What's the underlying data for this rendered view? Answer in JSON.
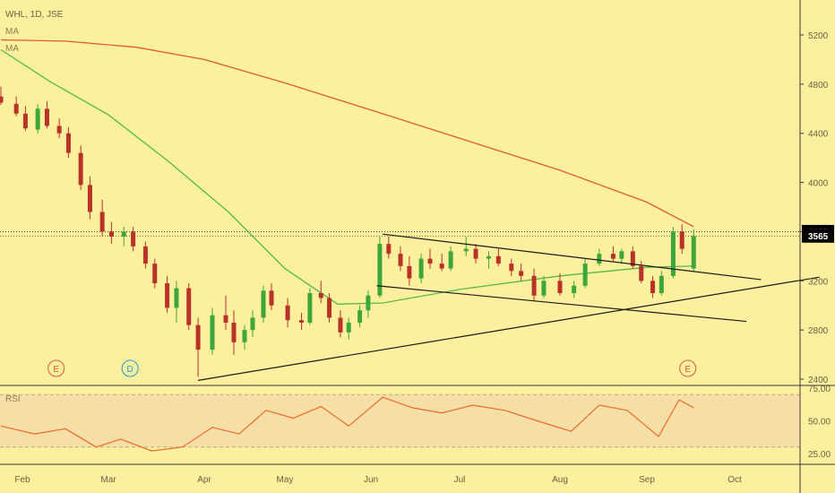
{
  "header": {
    "symbol_line": "WHL, 1D, JSE",
    "ma1_label": "MA",
    "ma2_label": "MA"
  },
  "rsi_panel": {
    "label": "RSI"
  },
  "colors": {
    "background": "#fcef9e",
    "up_candle": "#3da63a",
    "down_candle": "#b83227",
    "ma_long": "#e2583a",
    "ma_short": "#55b94a",
    "rsi_line": "#ef6a2a",
    "rsi_band": "#f5dfa6",
    "price_tag": "#000000",
    "trendline": "#1b1b1b"
  },
  "chart_data": [
    {
      "type": "candlestick",
      "title": "WHL, 1D, JSE",
      "xlabel": "",
      "ylabel": "",
      "x_ticks": [
        "Feb",
        "Mar",
        "Apr",
        "May",
        "Jun",
        "Jul",
        "Aug",
        "Sep",
        "Oct"
      ],
      "x_range": [
        "2018-01-25",
        "2018-10-20"
      ],
      "ylim": [
        2200,
        5400
      ],
      "y_ticks": [
        2400,
        2800,
        3200,
        3600,
        4000,
        4400,
        4800,
        5200
      ],
      "grid": false,
      "price_labels": [
        {
          "text": "3600",
          "value": 3600
        },
        {
          "text": "3565",
          "value": 3565
        }
      ],
      "horizontal_lines": [
        3600,
        3565
      ],
      "events": [
        {
          "text": "E",
          "date": "2018-02-12",
          "color": "#e2583a"
        },
        {
          "text": "D",
          "date": "2018-03-08",
          "color": "#1e9bd7"
        },
        {
          "text": "E",
          "date": "2018-09-15",
          "color": "#e2583a"
        }
      ],
      "series": [
        {
          "name": "MA",
          "kind": "moving_average_long",
          "points": [
            [
              "2018-01-25",
              5160
            ],
            [
              "2018-02-15",
              5150
            ],
            [
              "2018-03-10",
              5100
            ],
            [
              "2018-04-01",
              5000
            ],
            [
              "2018-05-01",
              4810
            ],
            [
              "2018-06-01",
              4590
            ],
            [
              "2018-07-01",
              4360
            ],
            [
              "2018-08-01",
              4100
            ],
            [
              "2018-09-01",
              3840
            ],
            [
              "2018-09-17",
              3640
            ]
          ]
        },
        {
          "name": "MA",
          "kind": "moving_average_short",
          "points": [
            [
              "2018-01-25",
              5080
            ],
            [
              "2018-02-10",
              4820
            ],
            [
              "2018-03-01",
              4550
            ],
            [
              "2018-03-20",
              4180
            ],
            [
              "2018-04-10",
              3760
            ],
            [
              "2018-05-01",
              3300
            ],
            [
              "2018-05-20",
              3010
            ],
            [
              "2018-06-05",
              3020
            ],
            [
              "2018-07-01",
              3130
            ],
            [
              "2018-08-01",
              3240
            ],
            [
              "2018-09-01",
              3310
            ],
            [
              "2018-09-17",
              3320
            ]
          ]
        }
      ],
      "candles": [
        [
          "2018-01-25",
          4700,
          4780,
          4630,
          4650
        ],
        [
          "2018-01-30",
          4640,
          4700,
          4540,
          4560
        ],
        [
          "2018-02-02",
          4560,
          4620,
          4420,
          4440
        ],
        [
          "2018-02-06",
          4430,
          4640,
          4400,
          4600
        ],
        [
          "2018-02-09",
          4600,
          4660,
          4440,
          4460
        ],
        [
          "2018-02-13",
          4460,
          4520,
          4360,
          4400
        ],
        [
          "2018-02-16",
          4400,
          4450,
          4200,
          4240
        ],
        [
          "2018-02-20",
          4240,
          4300,
          3940,
          3980
        ],
        [
          "2018-02-23",
          3980,
          4050,
          3700,
          3760
        ],
        [
          "2018-02-27",
          3760,
          3860,
          3560,
          3600
        ],
        [
          "2018-03-02",
          3600,
          3680,
          3500,
          3560
        ],
        [
          "2018-03-06",
          3560,
          3640,
          3480,
          3600
        ],
        [
          "2018-03-09",
          3600,
          3640,
          3440,
          3480
        ],
        [
          "2018-03-13",
          3480,
          3520,
          3300,
          3340
        ],
        [
          "2018-03-16",
          3340,
          3380,
          3140,
          3180
        ],
        [
          "2018-03-20",
          3180,
          3240,
          2940,
          2980
        ],
        [
          "2018-03-23",
          2980,
          3200,
          2860,
          3140
        ],
        [
          "2018-03-27",
          3140,
          3180,
          2800,
          2840
        ],
        [
          "2018-03-30",
          2840,
          2900,
          2420,
          2640
        ],
        [
          "2018-04-04",
          2640,
          2980,
          2600,
          2920
        ],
        [
          "2018-04-09",
          2920,
          3080,
          2800,
          2860
        ],
        [
          "2018-04-12",
          2860,
          2960,
          2600,
          2700
        ],
        [
          "2018-04-16",
          2700,
          2840,
          2640,
          2800
        ],
        [
          "2018-04-19",
          2800,
          2960,
          2740,
          2900
        ],
        [
          "2018-04-23",
          2900,
          3160,
          2860,
          3120
        ],
        [
          "2018-04-26",
          3120,
          3180,
          2960,
          3000
        ],
        [
          "2018-05-02",
          3000,
          3060,
          2820,
          2880
        ],
        [
          "2018-05-07",
          2880,
          2940,
          2800,
          2860
        ],
        [
          "2018-05-10",
          2860,
          3140,
          2840,
          3100
        ],
        [
          "2018-05-14",
          3100,
          3200,
          3020,
          3060
        ],
        [
          "2018-05-17",
          3060,
          3100,
          2860,
          2900
        ],
        [
          "2018-05-21",
          2900,
          2960,
          2740,
          2780
        ],
        [
          "2018-05-24",
          2780,
          2900,
          2720,
          2860
        ],
        [
          "2018-05-28",
          2860,
          3000,
          2820,
          2960
        ],
        [
          "2018-05-31",
          2960,
          3120,
          2900,
          3080
        ],
        [
          "2018-06-04",
          3080,
          3560,
          3060,
          3500
        ],
        [
          "2018-06-07",
          3500,
          3560,
          3380,
          3420
        ],
        [
          "2018-06-11",
          3420,
          3480,
          3280,
          3320
        ],
        [
          "2018-06-14",
          3320,
          3400,
          3160,
          3220
        ],
        [
          "2018-06-18",
          3220,
          3420,
          3180,
          3380
        ],
        [
          "2018-06-21",
          3380,
          3460,
          3300,
          3340
        ],
        [
          "2018-06-25",
          3340,
          3420,
          3280,
          3300
        ],
        [
          "2018-06-28",
          3300,
          3480,
          3280,
          3440
        ],
        [
          "2018-07-03",
          3440,
          3560,
          3400,
          3460
        ],
        [
          "2018-07-06",
          3460,
          3500,
          3340,
          3380
        ],
        [
          "2018-07-10",
          3380,
          3440,
          3300,
          3400
        ],
        [
          "2018-07-13",
          3400,
          3460,
          3320,
          3340
        ],
        [
          "2018-07-17",
          3340,
          3380,
          3240,
          3280
        ],
        [
          "2018-07-20",
          3280,
          3340,
          3200,
          3240
        ],
        [
          "2018-07-24",
          3240,
          3300,
          3040,
          3080
        ],
        [
          "2018-07-27",
          3080,
          3240,
          3060,
          3200
        ],
        [
          "2018-08-01",
          3200,
          3260,
          3080,
          3100
        ],
        [
          "2018-08-06",
          3100,
          3200,
          3060,
          3160
        ],
        [
          "2018-08-10",
          3160,
          3380,
          3140,
          3340
        ],
        [
          "2018-08-15",
          3340,
          3460,
          3320,
          3420
        ],
        [
          "2018-08-20",
          3420,
          3480,
          3360,
          3380
        ],
        [
          "2018-08-23",
          3380,
          3460,
          3340,
          3440
        ],
        [
          "2018-08-27",
          3440,
          3480,
          3300,
          3320
        ],
        [
          "2018-08-30",
          3320,
          3360,
          3180,
          3200
        ],
        [
          "2018-09-03",
          3200,
          3240,
          3060,
          3100
        ],
        [
          "2018-09-06",
          3100,
          3280,
          3080,
          3240
        ],
        [
          "2018-09-10",
          3240,
          3640,
          3220,
          3600
        ],
        [
          "2018-09-13",
          3600,
          3660,
          3420,
          3460
        ],
        [
          "2018-09-17",
          3300,
          3620,
          3280,
          3565
        ]
      ],
      "trendlines": [
        {
          "name": "triangle-upper",
          "from": [
            "2018-06-05",
            3580
          ],
          "to": [
            "2018-10-10",
            3210
          ]
        },
        {
          "name": "triangle-lower",
          "from": [
            "2018-03-30",
            2390
          ],
          "to": [
            "2018-10-30",
            3230
          ]
        },
        {
          "name": "channel-lower",
          "from": [
            "2018-06-03",
            3160
          ],
          "to": [
            "2018-10-05",
            2870
          ]
        }
      ]
    },
    {
      "type": "line",
      "title": "RSI",
      "xlabel": "",
      "ylabel": "",
      "ylim": [
        20,
        80
      ],
      "y_ticks": [
        25,
        50,
        75
      ],
      "y_tick_labels": [
        "25.00",
        "50.00",
        "75.00"
      ],
      "band": [
        30,
        70
      ],
      "grid": false,
      "series": [
        {
          "name": "RSI",
          "points": [
            [
              "2018-01-25",
              46
            ],
            [
              "2018-02-05",
              40
            ],
            [
              "2018-02-15",
              44
            ],
            [
              "2018-02-25",
              30
            ],
            [
              "2018-03-05",
              36
            ],
            [
              "2018-03-15",
              27
            ],
            [
              "2018-03-25",
              30
            ],
            [
              "2018-04-04",
              45
            ],
            [
              "2018-04-14",
              40
            ],
            [
              "2018-04-24",
              58
            ],
            [
              "2018-05-04",
              52
            ],
            [
              "2018-05-14",
              61
            ],
            [
              "2018-05-24",
              46
            ],
            [
              "2018-06-05",
              68
            ],
            [
              "2018-06-15",
              60
            ],
            [
              "2018-06-25",
              56
            ],
            [
              "2018-07-05",
              62
            ],
            [
              "2018-07-15",
              58
            ],
            [
              "2018-07-25",
              50
            ],
            [
              "2018-08-05",
              42
            ],
            [
              "2018-08-15",
              62
            ],
            [
              "2018-08-25",
              58
            ],
            [
              "2018-09-05",
              38
            ],
            [
              "2018-09-12",
              66
            ],
            [
              "2018-09-17",
              60
            ]
          ]
        }
      ]
    }
  ],
  "time_axis": {
    "labels": [
      "Feb",
      "Mar",
      "Apr",
      "May",
      "Jun",
      "Jul",
      "Aug",
      "Sep",
      "Oct"
    ]
  }
}
